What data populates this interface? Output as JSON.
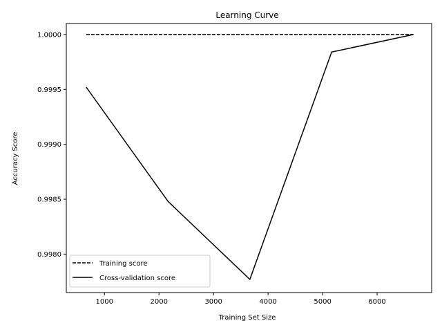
{
  "chart_data": {
    "type": "line",
    "title": "Learning Curve",
    "xlabel": "Training Set Size",
    "ylabel": "Accuracy Score",
    "xlim": [
      300,
      7000
    ],
    "ylim": [
      0.99765,
      1.0001
    ],
    "x_ticks": [
      1000,
      2000,
      3000,
      4000,
      5000,
      6000
    ],
    "y_ticks": [
      0.998,
      0.9985,
      0.999,
      0.9995,
      1.0
    ],
    "x_tick_labels": [
      "1000",
      "2000",
      "3000",
      "4000",
      "5000",
      "6000"
    ],
    "y_tick_labels": [
      "0.9980",
      "0.9985",
      "0.9990",
      "0.9995",
      "1.0000"
    ],
    "grid": false,
    "legend_position": "lower-left",
    "x": [
      666,
      2166,
      3666,
      5166,
      6666
    ],
    "series": [
      {
        "name": "Training score",
        "style": "dashed",
        "color": "#000000",
        "values": [
          1.0,
          1.0,
          1.0,
          1.0,
          1.0
        ]
      },
      {
        "name": "Cross-validation score",
        "style": "solid",
        "color": "#000000",
        "values": [
          0.99952,
          0.99848,
          0.99777,
          0.99984,
          1.0
        ]
      }
    ]
  }
}
